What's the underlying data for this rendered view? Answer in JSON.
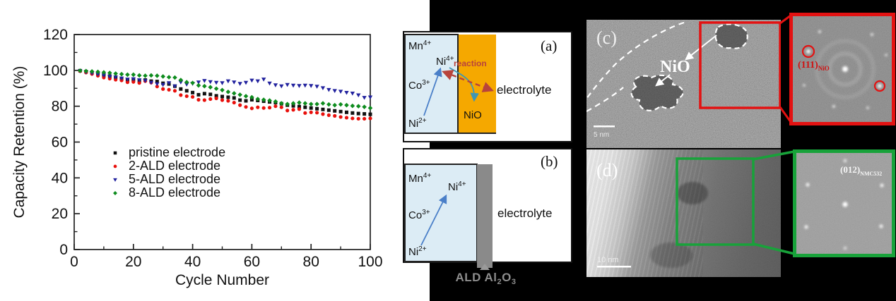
{
  "chart_data": {
    "type": "scatter",
    "title": "",
    "xlabel": "Cycle Number",
    "ylabel": "Capacity Retention (%)",
    "xlim": [
      0,
      100
    ],
    "ylim": [
      0,
      120
    ],
    "xticks": [
      0,
      20,
      40,
      60,
      80,
      100
    ],
    "yticks": [
      0,
      20,
      40,
      60,
      80,
      100,
      120
    ],
    "minor_tick_step": 10,
    "grid": false,
    "legend_position": "inside-middle-left",
    "x": [
      2,
      4,
      6,
      8,
      10,
      12,
      14,
      16,
      18,
      20,
      22,
      24,
      26,
      28,
      30,
      32,
      34,
      36,
      38,
      40,
      42,
      44,
      46,
      48,
      50,
      52,
      54,
      56,
      58,
      60,
      62,
      64,
      66,
      68,
      70,
      72,
      74,
      76,
      78,
      80,
      82,
      84,
      86,
      88,
      90,
      92,
      94,
      96,
      98,
      100
    ],
    "series": [
      {
        "name": "pristine electrode",
        "marker": "square",
        "color": "#111111",
        "values": [
          99.8,
          99.3,
          98.8,
          98.2,
          97.4,
          96.8,
          96.2,
          95.2,
          94.6,
          94.8,
          94.2,
          94.6,
          94.0,
          93.8,
          92.8,
          92.4,
          91.2,
          89.6,
          88.6,
          87.6,
          86.4,
          87.0,
          86.6,
          85.8,
          85.4,
          85.0,
          84.6,
          83.4,
          83.0,
          83.6,
          83.2,
          82.8,
          82.4,
          82.0,
          81.4,
          80.6,
          80.2,
          79.8,
          79.4,
          79.0,
          78.6,
          78.2,
          77.8,
          77.4,
          77.0,
          76.6,
          76.2,
          75.9,
          75.7,
          75.5
        ]
      },
      {
        "name": "2-ALD electrode",
        "marker": "circle",
        "color": "#e8100c",
        "values": [
          99.6,
          98.8,
          98.0,
          97.0,
          96.0,
          95.4,
          94.8,
          94.4,
          93.4,
          93.6,
          93.0,
          94.0,
          93.2,
          91.0,
          89.6,
          89.2,
          88.6,
          86.2,
          85.6,
          85.2,
          83.6,
          83.4,
          84.0,
          84.4,
          83.4,
          83.0,
          82.0,
          80.6,
          79.6,
          78.8,
          79.4,
          79.0,
          79.2,
          80.0,
          79.4,
          77.6,
          78.0,
          78.4,
          76.2,
          76.6,
          76.4,
          75.6,
          75.0,
          74.6,
          74.0,
          73.6,
          73.2,
          73.0,
          73.0,
          73.2
        ]
      },
      {
        "name": "5-ALD electrode",
        "marker": "triangle-down",
        "color": "#22229e",
        "values": [
          99.6,
          99.0,
          98.4,
          97.8,
          97.2,
          96.6,
          96.2,
          95.6,
          95.0,
          95.2,
          94.6,
          94.2,
          93.2,
          92.4,
          92.0,
          93.0,
          91.2,
          93.4,
          92.2,
          92.6,
          93.4,
          94.2,
          93.6,
          93.2,
          93.0,
          94.0,
          93.4,
          92.6,
          93.2,
          94.4,
          94.0,
          95.0,
          92.8,
          91.8,
          91.2,
          92.0,
          91.6,
          91.4,
          91.6,
          91.4,
          91.0,
          90.2,
          89.2,
          88.6,
          88.2,
          87.6,
          87.2,
          86.2,
          84.8,
          85.0
        ]
      },
      {
        "name": "8-ALD electrode",
        "marker": "diamond",
        "color": "#0e8c1e",
        "values": [
          99.8,
          99.6,
          99.4,
          99.2,
          98.9,
          98.6,
          98.2,
          97.9,
          97.6,
          97.6,
          97.2,
          97.0,
          97.2,
          97.0,
          96.6,
          96.2,
          96.0,
          94.6,
          93.4,
          93.0,
          91.6,
          91.2,
          90.6,
          89.8,
          89.0,
          88.0,
          87.2,
          86.4,
          85.6,
          85.0,
          84.0,
          83.6,
          83.2,
          82.6,
          81.6,
          81.2,
          81.6,
          82.0,
          81.6,
          81.2,
          81.2,
          81.6,
          81.0,
          80.6,
          81.0,
          80.6,
          80.2,
          80.0,
          79.6,
          79.0
        ]
      }
    ]
  },
  "diagram": {
    "panel_a": {
      "tag": "(a)",
      "mn": "Mn",
      "mn_sup": "4+",
      "co": "Co",
      "co_sup": "3+",
      "ni2": "Ni",
      "ni2_sup": "2+",
      "ni4": "Ni",
      "ni4_sup": "4+",
      "reaction_label": "reaction",
      "nio_label": "NiO",
      "electrolyte_label": "electrolyte",
      "cathode_fill": "#dcecf5",
      "nio_fill": "#f5a800",
      "reaction_color": "#b8433c"
    },
    "panel_b": {
      "tag": "(b)",
      "mn": "Mn",
      "mn_sup": "4+",
      "co": "Co",
      "co_sup": "3+",
      "ni2": "Ni",
      "ni2_sup": "2+",
      "ni4": "Ni",
      "ni4_sup": "4+",
      "electrolyte_label": "electrolyte",
      "cathode_fill": "#dcecf5",
      "coating_fill": "#8a8a8a",
      "coating_pre": "ALD Al",
      "coating_sub1": "2",
      "coating_mid": "O",
      "coating_sub2": "3"
    }
  },
  "tem": {
    "panel_c": {
      "tag": "(c)",
      "annotation": "NiO",
      "scale_bar": "5 nm",
      "box_color": "#e31212",
      "fft_label_main": "(111)",
      "fft_label_sub": "NiO"
    },
    "panel_d": {
      "tag": "(d)",
      "scale_bar": "10 nm",
      "box_color": "#18a23a",
      "fft_label_main": "(012)",
      "fft_label_sub": "NMC532"
    }
  }
}
